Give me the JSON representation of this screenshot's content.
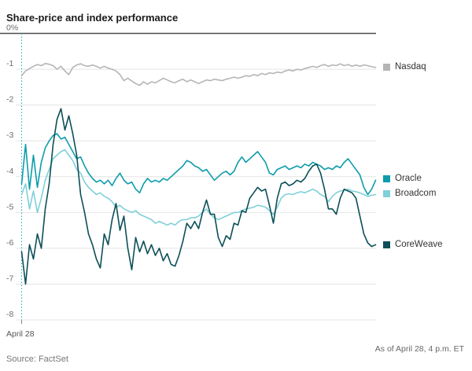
{
  "title": "Share-price and index performance",
  "x_axis_label": "April 28",
  "footer": {
    "source": "Source: FactSet",
    "as_of": "As of April 28, 4 p.m. ET"
  },
  "chart_data": {
    "type": "line",
    "title": "Share-price and index performance",
    "unit": "percent change",
    "xlabel": "April 28",
    "ylabel": "",
    "ylim": [
      -8,
      0
    ],
    "yticks": [
      0,
      -1,
      -2,
      -3,
      -4,
      -5,
      -6,
      -7,
      -8
    ],
    "ytick_labels": [
      "0%",
      "-1",
      "-2",
      "-3",
      "-4",
      "-5",
      "-6",
      "-7",
      "-8"
    ],
    "grid": true,
    "legend_position": "right",
    "colors": {
      "zero_line": "#4d4d4d",
      "gridline": "#e4e4e4",
      "session_marker": "#2aa7b8",
      "axis_tick": "#8a8a8a"
    },
    "series": [
      {
        "name": "Nasdaq",
        "color": "#b5b5b5",
        "values": [
          -1.18,
          -1.05,
          -0.98,
          -0.92,
          -0.87,
          -0.9,
          -0.84,
          -0.86,
          -0.9,
          -1.0,
          -0.92,
          -1.05,
          -1.15,
          -0.95,
          -0.88,
          -0.85,
          -0.9,
          -0.92,
          -0.88,
          -0.92,
          -0.97,
          -0.92,
          -0.97,
          -1.0,
          -1.05,
          -1.15,
          -1.32,
          -1.25,
          -1.33,
          -1.4,
          -1.45,
          -1.35,
          -1.42,
          -1.35,
          -1.38,
          -1.32,
          -1.25,
          -1.3,
          -1.35,
          -1.38,
          -1.32,
          -1.28,
          -1.35,
          -1.3,
          -1.35,
          -1.4,
          -1.35,
          -1.3,
          -1.32,
          -1.28,
          -1.3,
          -1.32,
          -1.28,
          -1.25,
          -1.22,
          -1.25,
          -1.22,
          -1.18,
          -1.2,
          -1.15,
          -1.18,
          -1.12,
          -1.15,
          -1.1,
          -1.12,
          -1.08,
          -1.1,
          -1.05,
          -1.02,
          -1.05,
          -1.0,
          -1.02,
          -0.98,
          -0.95,
          -0.92,
          -0.95,
          -0.9,
          -0.87,
          -0.92,
          -0.88,
          -0.9,
          -0.85,
          -0.9,
          -0.87,
          -0.92,
          -0.88,
          -0.92,
          -0.88,
          -0.9,
          -0.93,
          -0.95
        ]
      },
      {
        "name": "Oracle",
        "color": "#0e9cac",
        "values": [
          -4.2,
          -3.1,
          -4.35,
          -3.4,
          -4.3,
          -3.6,
          -3.2,
          -3.0,
          -2.85,
          -2.8,
          -2.95,
          -2.9,
          -3.1,
          -3.3,
          -3.5,
          -3.45,
          -3.7,
          -3.9,
          -4.05,
          -4.15,
          -4.1,
          -4.2,
          -4.1,
          -4.25,
          -4.05,
          -3.9,
          -4.1,
          -4.2,
          -4.15,
          -4.35,
          -4.45,
          -4.2,
          -4.05,
          -4.15,
          -4.1,
          -4.15,
          -4.05,
          -4.1,
          -4.0,
          -3.9,
          -3.8,
          -3.7,
          -3.55,
          -3.6,
          -3.7,
          -3.75,
          -3.85,
          -3.8,
          -3.95,
          -4.1,
          -4.0,
          -3.9,
          -3.85,
          -3.95,
          -3.85,
          -3.6,
          -3.45,
          -3.6,
          -3.5,
          -3.4,
          -3.3,
          -3.45,
          -3.6,
          -3.9,
          -3.95,
          -3.8,
          -3.75,
          -3.7,
          -3.8,
          -3.75,
          -3.7,
          -3.75,
          -3.65,
          -3.7,
          -3.6,
          -3.65,
          -3.7,
          -3.8,
          -3.75,
          -3.8,
          -3.7,
          -3.75,
          -3.6,
          -3.5,
          -3.65,
          -3.8,
          -3.95,
          -4.3,
          -4.5,
          -4.35,
          -4.1
        ]
      },
      {
        "name": "Broadcom",
        "color": "#7fd0d8",
        "values": [
          -4.5,
          -4.2,
          -4.9,
          -4.4,
          -5.0,
          -4.6,
          -4.1,
          -3.8,
          -3.5,
          -3.4,
          -3.3,
          -3.25,
          -3.4,
          -3.55,
          -3.8,
          -3.9,
          -4.15,
          -4.3,
          -4.4,
          -4.5,
          -4.45,
          -4.55,
          -4.6,
          -4.7,
          -4.85,
          -4.8,
          -4.9,
          -4.95,
          -5.0,
          -4.95,
          -5.05,
          -5.1,
          -5.15,
          -5.2,
          -5.3,
          -5.25,
          -5.3,
          -5.35,
          -5.3,
          -5.35,
          -5.25,
          -5.2,
          -5.2,
          -5.15,
          -5.15,
          -5.1,
          -5.0,
          -4.9,
          -5.05,
          -5.15,
          -5.2,
          -5.15,
          -5.1,
          -5.05,
          -5.0,
          -5.0,
          -4.95,
          -4.9,
          -4.88,
          -4.85,
          -4.8,
          -4.82,
          -4.85,
          -4.95,
          -5.05,
          -4.85,
          -4.6,
          -4.5,
          -4.48,
          -4.5,
          -4.45,
          -4.42,
          -4.45,
          -4.4,
          -4.35,
          -4.4,
          -4.5,
          -4.55,
          -4.7,
          -4.55,
          -4.45,
          -4.4,
          -4.38,
          -4.35,
          -4.4,
          -4.42,
          -4.45,
          -4.5,
          -4.55,
          -4.52,
          -4.5
        ]
      },
      {
        "name": "CoreWeave",
        "color": "#0c4f58",
        "values": [
          -6.1,
          -7.0,
          -5.9,
          -6.3,
          -5.6,
          -6.0,
          -4.9,
          -4.2,
          -3.1,
          -2.4,
          -2.1,
          -2.7,
          -2.3,
          -2.8,
          -3.4,
          -4.5,
          -5.0,
          -5.6,
          -5.9,
          -6.3,
          -6.55,
          -5.6,
          -5.9,
          -5.2,
          -4.75,
          -5.5,
          -5.1,
          -6.0,
          -6.6,
          -5.7,
          -6.1,
          -5.8,
          -6.15,
          -5.9,
          -6.2,
          -6.0,
          -6.35,
          -6.15,
          -6.45,
          -6.5,
          -6.2,
          -5.8,
          -5.3,
          -5.45,
          -5.25,
          -5.45,
          -5.0,
          -4.65,
          -5.05,
          -5.05,
          -5.7,
          -5.95,
          -5.65,
          -5.75,
          -5.3,
          -5.35,
          -4.95,
          -5.0,
          -4.6,
          -4.45,
          -4.3,
          -4.4,
          -4.35,
          -4.8,
          -5.3,
          -4.6,
          -4.2,
          -4.15,
          -4.25,
          -4.2,
          -4.1,
          -4.15,
          -4.05,
          -3.85,
          -3.7,
          -3.65,
          -3.9,
          -4.35,
          -4.9,
          -4.9,
          -5.05,
          -4.6,
          -4.35,
          -4.4,
          -4.45,
          -4.6,
          -5.1,
          -5.6,
          -5.85,
          -5.95,
          -5.9
        ]
      }
    ]
  }
}
